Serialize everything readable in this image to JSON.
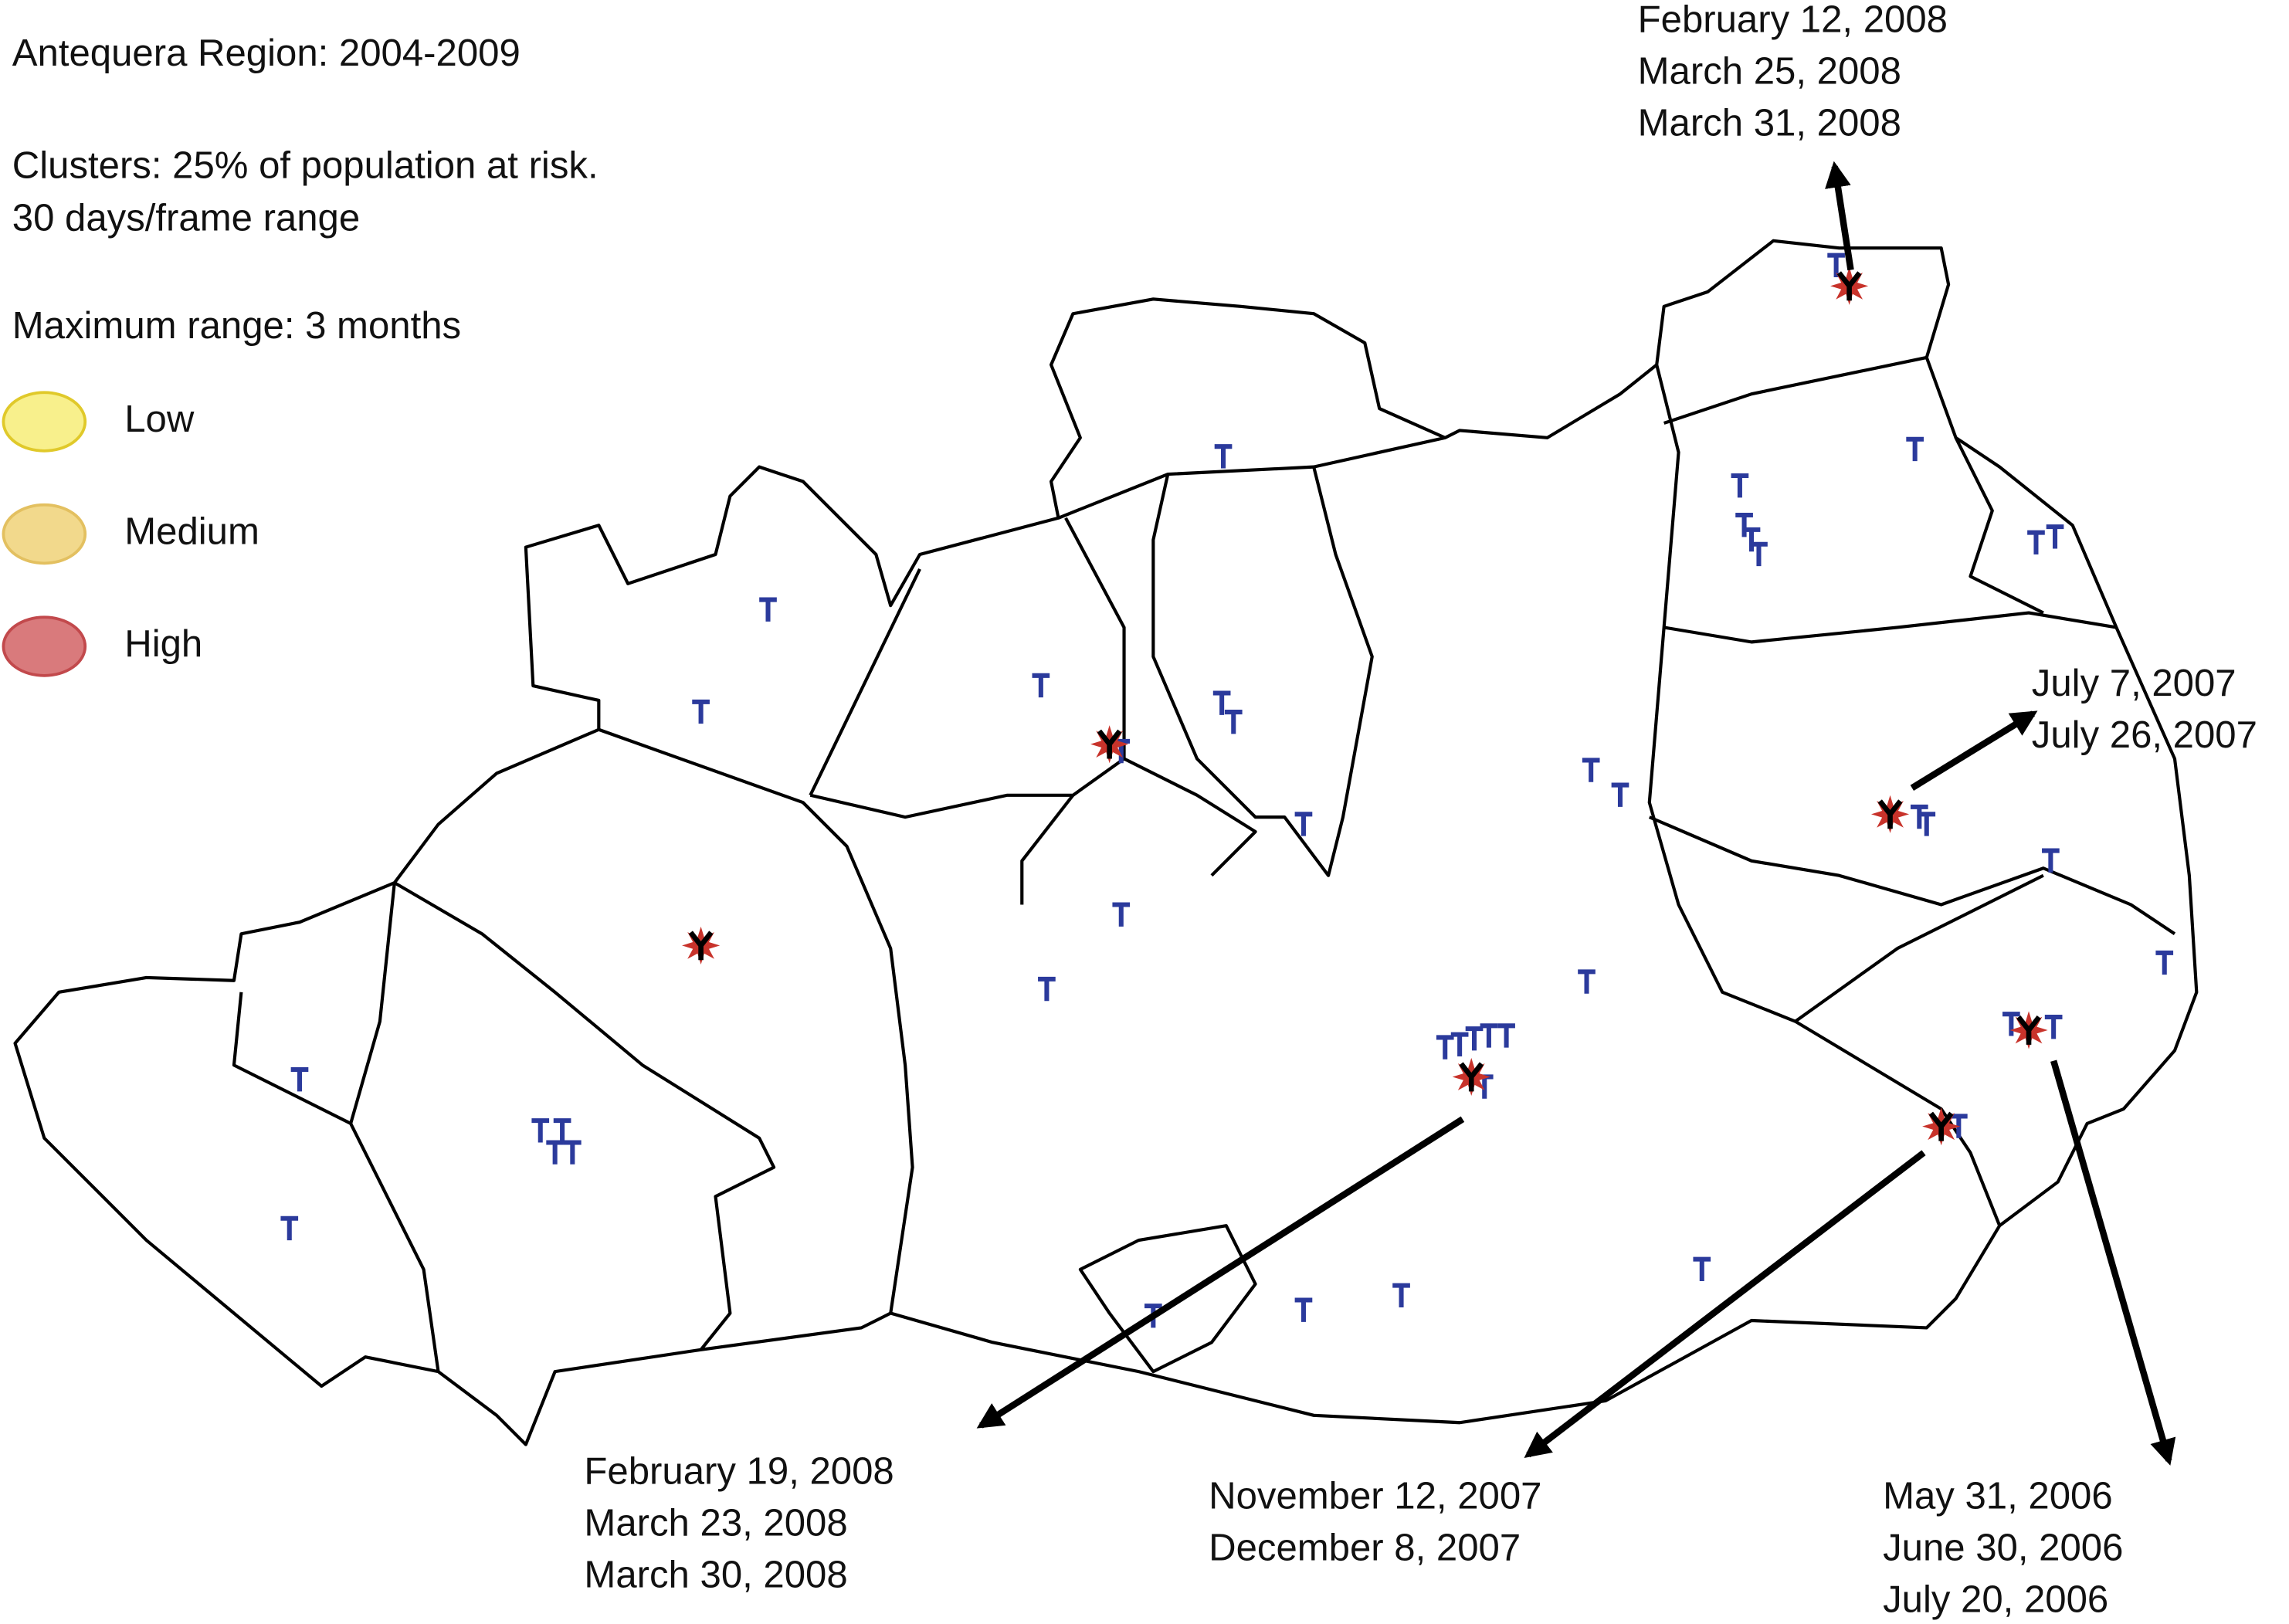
{
  "header": {
    "title": "Antequera Region: 2004-2009",
    "settings": [
      "Clusters: 25% of population at risk.",
      "30 days/frame range"
    ],
    "maximum_range": "Maximum range: 3 months"
  },
  "legend": [
    {
      "label": "Low",
      "color": "#f8f08c"
    },
    {
      "label": "Medium",
      "color": "#f2d98c"
    },
    {
      "label": "High",
      "color": "#d97a7c"
    }
  ],
  "annotations": [
    {
      "dates": [
        "February 12, 2008",
        "March 25, 2008",
        "March 31, 2008"
      ]
    },
    {
      "dates": [
        "July 7, 2007",
        "July 26, 2007"
      ]
    },
    {
      "dates": [
        "February 19, 2008",
        "March 23, 2008",
        "March 30, 2008"
      ]
    },
    {
      "dates": [
        "November 12, 2007",
        "December 8, 2007"
      ]
    },
    {
      "dates": [
        "May 31, 2006",
        "June 30, 2006",
        "July 20, 2006"
      ]
    }
  ]
}
